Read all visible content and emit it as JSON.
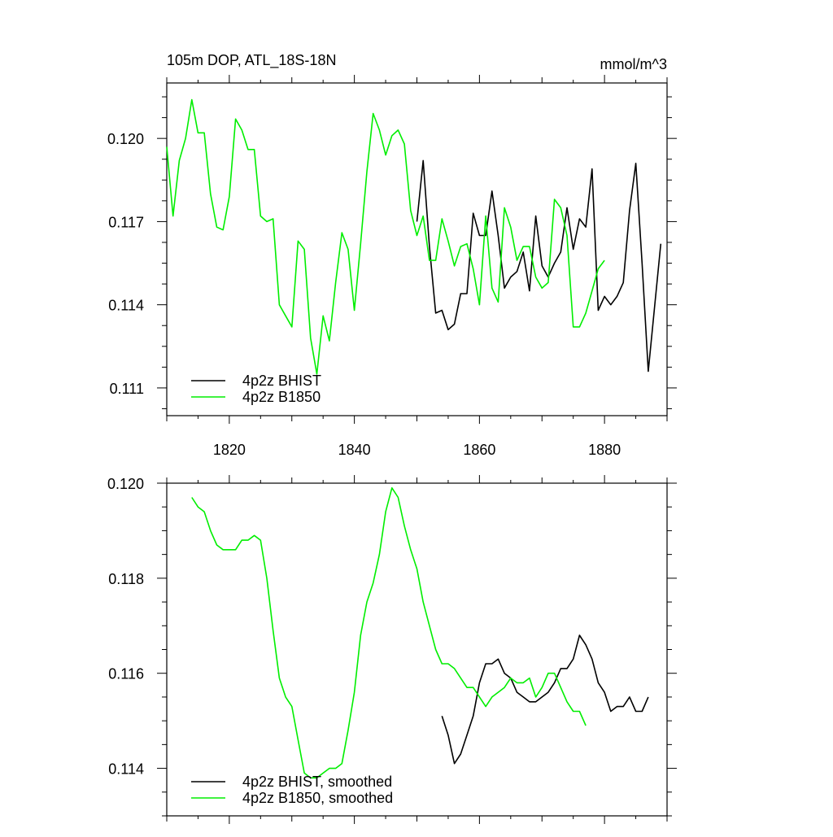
{
  "chart_data": [
    {
      "type": "line",
      "title": "105m DOP, ATL_18S-18N",
      "units": "mmol/m^3",
      "xlabel": "",
      "ylabel": "",
      "xlim": [
        1810,
        1890
      ],
      "ylim": [
        0.11,
        0.122
      ],
      "xticks": [
        1820,
        1840,
        1860,
        1880
      ],
      "xtick_labels": [
        "1820",
        "1840",
        "1860",
        "1880"
      ],
      "yticks": [
        0.111,
        0.114,
        0.117,
        0.12
      ],
      "ytick_labels": [
        "0.111",
        "0.114",
        "0.117",
        "0.120"
      ],
      "legend_position": "bottom-left",
      "series": [
        {
          "name": "4p2z BHIST",
          "color": "#000000",
          "x": [
            1850,
            1851,
            1852,
            1853,
            1854,
            1855,
            1856,
            1857,
            1858,
            1859,
            1860,
            1861,
            1862,
            1863,
            1864,
            1865,
            1866,
            1867,
            1868,
            1869,
            1870,
            1871,
            1872,
            1873,
            1874,
            1875,
            1876,
            1877,
            1878,
            1879,
            1880,
            1881,
            1882,
            1883,
            1884,
            1885,
            1886,
            1887,
            1888,
            1889
          ],
          "values": [
            0.117,
            0.1192,
            0.1161,
            0.1137,
            0.1138,
            0.1131,
            0.1133,
            0.1144,
            0.1144,
            0.1173,
            0.1165,
            0.1165,
            0.1181,
            0.1165,
            0.1146,
            0.115,
            0.1152,
            0.1159,
            0.1145,
            0.1172,
            0.1154,
            0.115,
            0.1155,
            0.1159,
            0.1175,
            0.116,
            0.1171,
            0.1168,
            0.1189,
            0.1138,
            0.1143,
            0.114,
            0.1143,
            0.1148,
            0.1174,
            0.1191,
            0.1155,
            0.1116,
            0.1139,
            0.1162
          ]
        },
        {
          "name": "4p2z B1850",
          "color": "#00ee00",
          "x": [
            1810,
            1811,
            1812,
            1813,
            1814,
            1815,
            1816,
            1817,
            1818,
            1819,
            1820,
            1821,
            1822,
            1823,
            1824,
            1825,
            1826,
            1827,
            1828,
            1829,
            1830,
            1831,
            1832,
            1833,
            1834,
            1835,
            1836,
            1837,
            1838,
            1839,
            1840,
            1841,
            1842,
            1843,
            1844,
            1845,
            1846,
            1847,
            1848,
            1849,
            1850,
            1851,
            1852,
            1853,
            1854,
            1855,
            1856,
            1857,
            1858,
            1859,
            1860,
            1861,
            1862,
            1863,
            1864,
            1865,
            1866,
            1867,
            1868,
            1869,
            1870,
            1871,
            1872,
            1873,
            1874,
            1875,
            1876,
            1877,
            1878,
            1879,
            1880
          ],
          "values": [
            0.1197,
            0.1172,
            0.1192,
            0.12,
            0.1214,
            0.1202,
            0.1202,
            0.118,
            0.1168,
            0.1167,
            0.1179,
            0.1207,
            0.1203,
            0.1196,
            0.1196,
            0.1172,
            0.117,
            0.1171,
            0.114,
            0.1136,
            0.1132,
            0.1163,
            0.116,
            0.1128,
            0.1115,
            0.1136,
            0.1127,
            0.1148,
            0.1166,
            0.116,
            0.1138,
            0.1162,
            0.1188,
            0.1209,
            0.1203,
            0.1194,
            0.1201,
            0.1203,
            0.1198,
            0.1174,
            0.1165,
            0.1172,
            0.1156,
            0.1156,
            0.1171,
            0.1163,
            0.1154,
            0.1161,
            0.1162,
            0.1153,
            0.114,
            0.1172,
            0.1146,
            0.1141,
            0.1175,
            0.1168,
            0.1156,
            0.1161,
            0.1161,
            0.115,
            0.1146,
            0.1148,
            0.1178,
            0.1175,
            0.1165,
            0.1132,
            0.1132,
            0.1137,
            0.1145,
            0.1153,
            0.1156
          ]
        }
      ]
    },
    {
      "type": "line",
      "title": "",
      "xlabel": "",
      "ylabel": "",
      "xlim": [
        1810,
        1890
      ],
      "ylim": [
        0.113,
        0.12
      ],
      "xticks": [
        1820,
        1840,
        1860,
        1880
      ],
      "yticks": [
        0.114,
        0.116,
        0.118,
        0.12
      ],
      "ytick_labels": [
        "0.114",
        "0.116",
        "0.118",
        "0.120"
      ],
      "legend_position": "bottom-left",
      "series": [
        {
          "name": "4p2z BHIST, smoothed",
          "color": "#000000",
          "x": [
            1854,
            1855,
            1856,
            1857,
            1858,
            1859,
            1860,
            1861,
            1862,
            1863,
            1864,
            1865,
            1866,
            1867,
            1868,
            1869,
            1870,
            1871,
            1872,
            1873,
            1874,
            1875,
            1876,
            1877,
            1878,
            1879,
            1880,
            1881,
            1882,
            1883,
            1884,
            1885,
            1886,
            1887
          ],
          "values": [
            0.1151,
            0.1147,
            0.1141,
            0.1143,
            0.1147,
            0.1151,
            0.1158,
            0.1162,
            0.1162,
            0.1163,
            0.116,
            0.1159,
            0.1156,
            0.1155,
            0.1154,
            0.1154,
            0.1155,
            0.1156,
            0.1158,
            0.1161,
            0.1161,
            0.1163,
            0.1168,
            0.1166,
            0.1163,
            0.1158,
            0.1156,
            0.1152,
            0.1153,
            0.1153,
            0.1155,
            0.1152,
            0.1152,
            0.1155
          ]
        },
        {
          "name": "4p2z B1850, smoothed",
          "color": "#00ee00",
          "x": [
            1814,
            1815,
            1816,
            1817,
            1818,
            1819,
            1820,
            1821,
            1822,
            1823,
            1824,
            1825,
            1826,
            1827,
            1828,
            1829,
            1830,
            1831,
            1832,
            1833,
            1834,
            1835,
            1836,
            1837,
            1838,
            1839,
            1840,
            1841,
            1842,
            1843,
            1844,
            1845,
            1846,
            1847,
            1848,
            1849,
            1850,
            1851,
            1852,
            1853,
            1854,
            1855,
            1856,
            1857,
            1858,
            1859,
            1860,
            1861,
            1862,
            1863,
            1864,
            1865,
            1866,
            1867,
            1868,
            1869,
            1870,
            1871,
            1872,
            1873,
            1874,
            1875,
            1876,
            1877
          ],
          "values": [
            0.1197,
            0.1195,
            0.1194,
            0.119,
            0.1187,
            0.1186,
            0.1186,
            0.1186,
            0.1188,
            0.1188,
            0.1189,
            0.1188,
            0.118,
            0.1169,
            0.1159,
            0.1155,
            0.1153,
            0.1146,
            0.1139,
            0.1138,
            0.1138,
            0.1139,
            0.114,
            0.114,
            0.1141,
            0.1148,
            0.1156,
            0.1168,
            0.1175,
            0.1179,
            0.1185,
            0.1194,
            0.1199,
            0.1197,
            0.1191,
            0.1186,
            0.1182,
            0.1175,
            0.117,
            0.1165,
            0.1162,
            0.1162,
            0.1161,
            0.1159,
            0.1157,
            0.1157,
            0.1155,
            0.1153,
            0.1155,
            0.1156,
            0.1157,
            0.1159,
            0.1158,
            0.1158,
            0.1159,
            0.1155,
            0.1157,
            0.116,
            0.116,
            0.1157,
            0.1154,
            0.1152,
            0.1152,
            0.1149
          ]
        }
      ]
    }
  ]
}
